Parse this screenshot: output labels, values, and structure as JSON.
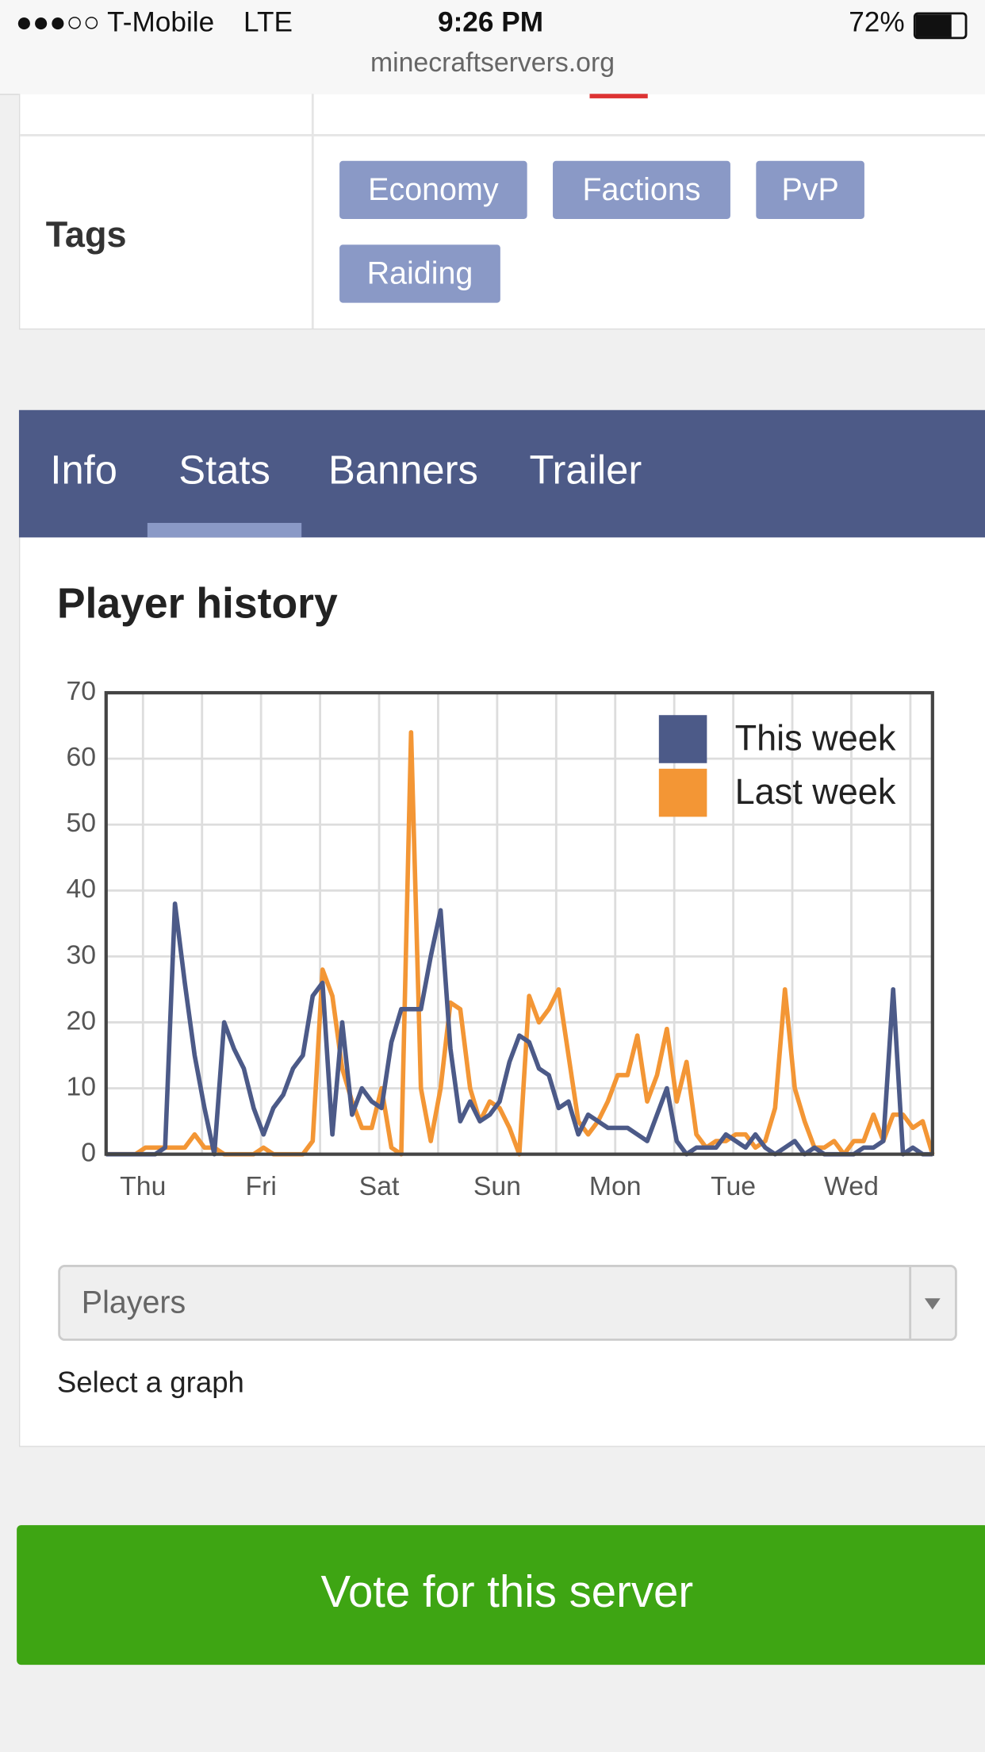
{
  "status_bar": {
    "carrier": "●●●○○ T-Mobile",
    "network": "LTE",
    "time": "9:26 PM",
    "battery": "72%"
  },
  "url": "minecraftservers.org",
  "table": {
    "rows": [
      {
        "label": "Tags",
        "tags": [
          "Economy",
          "Factions",
          "PvP",
          "Raiding"
        ]
      }
    ]
  },
  "tabs": [
    "Info",
    "Stats",
    "Banners",
    "Trailer"
  ],
  "active_tab": 1,
  "section_title": "Player history",
  "chart_data": {
    "type": "line",
    "x": [
      0,
      2,
      4,
      6,
      8,
      10,
      12,
      14,
      16,
      18,
      20,
      22,
      24,
      26,
      28,
      30,
      32,
      34,
      36,
      38,
      40,
      42,
      44,
      46,
      48,
      50,
      52,
      54,
      56,
      58,
      60,
      62,
      64,
      66,
      68,
      70,
      72,
      74,
      76,
      78,
      80,
      82,
      84,
      86,
      88,
      90,
      92,
      94,
      96,
      98,
      100,
      102,
      104,
      106,
      108,
      110,
      112,
      114,
      116,
      118,
      120,
      122,
      124,
      126,
      128,
      130,
      132,
      134,
      136,
      138,
      140,
      142,
      144,
      146,
      148,
      150,
      152,
      154,
      156,
      158,
      160,
      162,
      164,
      166,
      168
    ],
    "series": [
      {
        "name": "This week",
        "color": "#4c5a88",
        "values": [
          0,
          0,
          0,
          0,
          0,
          0,
          1,
          38,
          26,
          15,
          7,
          0,
          20,
          16,
          13,
          7,
          3,
          7,
          9,
          13,
          15,
          24,
          26,
          3,
          20,
          6,
          10,
          8,
          7,
          17,
          22,
          22,
          22,
          30,
          37,
          16,
          5,
          8,
          5,
          6,
          8,
          14,
          18,
          17,
          13,
          12,
          7,
          8,
          3,
          6,
          5,
          4,
          4,
          4,
          3,
          2,
          6,
          10,
          2,
          0,
          1,
          1,
          1,
          3,
          2,
          1,
          3,
          1,
          0,
          1,
          2,
          0,
          1,
          0,
          0,
          0,
          0,
          1,
          1,
          2,
          25,
          0,
          1,
          0,
          0
        ]
      },
      {
        "name": "Last week",
        "color": "#f39635",
        "values": [
          0,
          0,
          0,
          0,
          1,
          1,
          1,
          1,
          1,
          3,
          1,
          1,
          0,
          0,
          0,
          0,
          1,
          0,
          0,
          0,
          0,
          2,
          28,
          24,
          13,
          8,
          4,
          4,
          10,
          1,
          0,
          64,
          10,
          2,
          10,
          23,
          22,
          10,
          5,
          8,
          7,
          4,
          0,
          24,
          20,
          22,
          25,
          15,
          5,
          3,
          5,
          8,
          12,
          12,
          18,
          8,
          12,
          19,
          8,
          14,
          3,
          1,
          2,
          2,
          3,
          3,
          1,
          2,
          7,
          25,
          10,
          5,
          1,
          1,
          2,
          0,
          2,
          2,
          6,
          2,
          6,
          6,
          4,
          5,
          0
        ]
      }
    ],
    "xlim": [
      0,
      168
    ],
    "xticks": [
      {
        "value": 7.5,
        "label": "Thu"
      },
      {
        "value": 31.5,
        "label": "Fri"
      },
      {
        "value": 55.5,
        "label": "Sat"
      },
      {
        "value": 79.5,
        "label": "Sun"
      },
      {
        "value": 103.5,
        "label": "Mon"
      },
      {
        "value": 127.5,
        "label": "Tue"
      },
      {
        "value": 151.5,
        "label": "Wed"
      }
    ],
    "x_minor_ticks": [
      19.5,
      43.5,
      67.5,
      91.5,
      115.5,
      139.5,
      163.5
    ],
    "ylim": [
      0,
      70
    ],
    "yticks": [
      0,
      10,
      20,
      30,
      40,
      50,
      60,
      70
    ],
    "grid": true,
    "legend": "upper right"
  },
  "select": {
    "value": "Players",
    "help": "Select a graph"
  },
  "button": "Vote for this server"
}
